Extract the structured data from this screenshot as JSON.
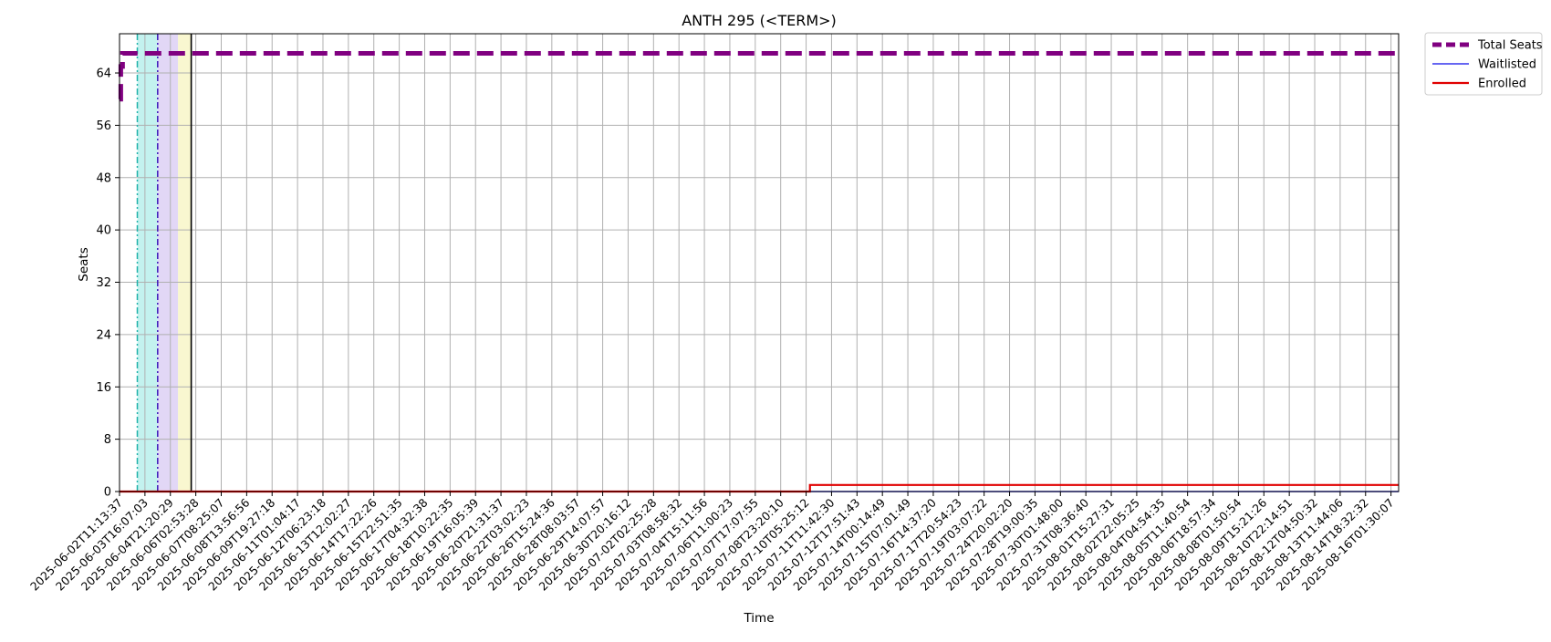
{
  "chart_data": {
    "type": "line",
    "title": "ANTH 295 (<TERM>)",
    "xlabel": "Time",
    "ylabel": "Seats",
    "ylim": [
      0,
      70
    ],
    "yticks": [
      0,
      8,
      16,
      24,
      32,
      40,
      48,
      56,
      64
    ],
    "grid": true,
    "legend_position": "outside-top-right",
    "x_categories": [
      "2025-06-02T11:13:37",
      "2025-06-03T16:07:03",
      "2025-06-04T21:20:29",
      "2025-06-06T02:53:28",
      "2025-06-07T08:25:07",
      "2025-06-08T13:56:56",
      "2025-06-09T19:27:18",
      "2025-06-11T01:04:17",
      "2025-06-12T06:23:18",
      "2025-06-13T12:02:27",
      "2025-06-14T17:22:26",
      "2025-06-15T22:51:35",
      "2025-06-17T04:32:38",
      "2025-06-18T10:22:35",
      "2025-06-19T16:05:39",
      "2025-06-20T21:31:37",
      "2025-06-22T03:02:23",
      "2025-06-26T15:24:36",
      "2025-06-28T08:03:57",
      "2025-06-29T14:07:57",
      "2025-06-30T20:16:12",
      "2025-07-02T02:25:28",
      "2025-07-03T08:58:32",
      "2025-07-04T15:11:56",
      "2025-07-06T11:00:23",
      "2025-07-07T17:07:55",
      "2025-07-08T23:20:10",
      "2025-07-10T05:25:12",
      "2025-07-11T11:42:30",
      "2025-07-12T17:51:43",
      "2025-07-14T00:14:49",
      "2025-07-15T07:01:49",
      "2025-07-16T14:37:20",
      "2025-07-17T20:54:23",
      "2025-07-19T03:07:22",
      "2025-07-24T20:02:20",
      "2025-07-28T19:00:35",
      "2025-07-30T01:48:00",
      "2025-07-31T08:36:40",
      "2025-08-01T15:27:31",
      "2025-08-02T22:05:25",
      "2025-08-04T04:54:35",
      "2025-08-05T11:40:54",
      "2025-08-06T18:57:34",
      "2025-08-08T01:50:54",
      "2025-08-09T15:21:26",
      "2025-08-10T22:14:51",
      "2025-08-12T04:50:32",
      "2025-08-13T11:44:06",
      "2025-08-14T18:32:32",
      "2025-08-16T01:30:07"
    ],
    "x_range": [
      0,
      50.3
    ],
    "series": [
      {
        "name": "Total Seats",
        "color": "#800080",
        "style": "dashed-thick",
        "points": [
          [
            0,
            60
          ],
          [
            0.05,
            60
          ],
          [
            0.05,
            65
          ],
          [
            0.12,
            65
          ],
          [
            0.12,
            67
          ],
          [
            50.3,
            67
          ]
        ]
      },
      {
        "name": "Waitlisted",
        "color": "#3333ee",
        "style": "solid-thin",
        "points": [
          [
            0,
            0
          ],
          [
            50.3,
            0
          ]
        ]
      },
      {
        "name": "Enrolled",
        "color": "#e00000",
        "style": "solid",
        "points": [
          [
            0,
            0
          ],
          [
            27.15,
            0
          ],
          [
            27.15,
            1
          ],
          [
            50.3,
            1
          ]
        ]
      }
    ],
    "shaded_regions": [
      {
        "x0": 0.7,
        "x1": 1.5,
        "color": "#b8f0ec"
      },
      {
        "x0": 1.5,
        "x1": 2.3,
        "color": "#ddd0f4"
      },
      {
        "x0": 2.3,
        "x1": 2.82,
        "color": "#f8f6c8"
      }
    ],
    "vertical_markers": [
      {
        "x": 0.7,
        "color": "#20b2aa",
        "style": "dashdot"
      },
      {
        "x": 1.5,
        "color": "#3b16b8",
        "style": "dashdot"
      },
      {
        "x": 2.82,
        "color": "#000000",
        "style": "solid"
      }
    ]
  }
}
